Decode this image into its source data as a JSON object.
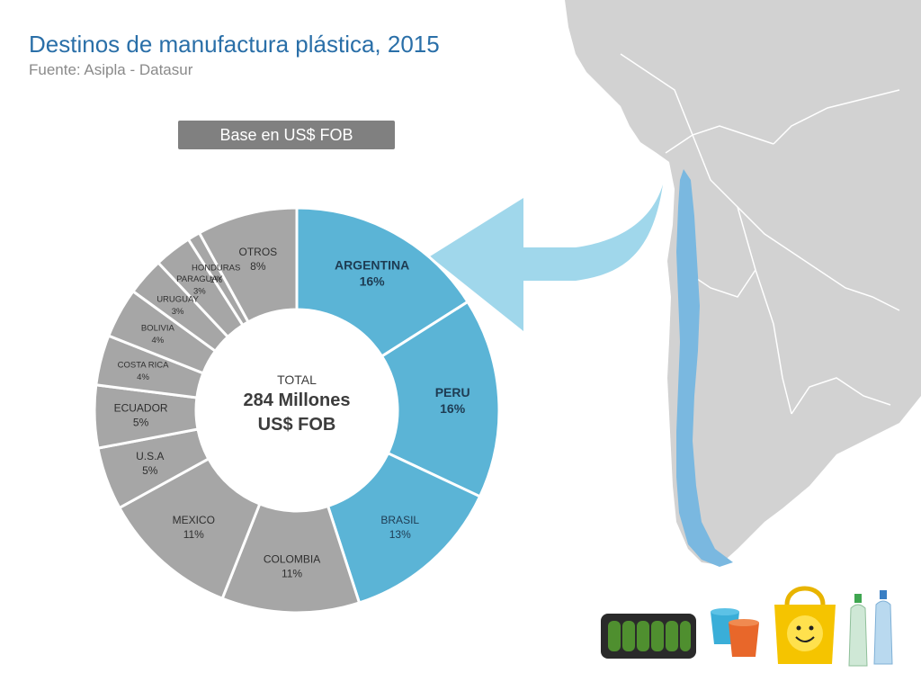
{
  "slide": {
    "title": "Destinos de manufactura plástica, 2015",
    "subtitle": "Fuente: Asipla - Datasur",
    "base_label": "Base en US$ FOB"
  },
  "colors": {
    "highlight": "#5bb4d6",
    "other": "#a6a6a6",
    "title": "#2a6fa8",
    "arrow": "#8fd0e8",
    "map_land": "#d2d2d2",
    "chile": "#7ab8e0"
  },
  "chart_data": {
    "type": "donut",
    "center": {
      "line1": "TOTAL",
      "line2": "284 Millones",
      "line3": "US$ FOB"
    },
    "slices": [
      {
        "name": "ARGENTINA",
        "value": 16,
        "label": "16%",
        "highlight": true
      },
      {
        "name": "PERU",
        "value": 16,
        "label": "16%",
        "highlight": true
      },
      {
        "name": "BRASIL",
        "value": 13,
        "label": "13%",
        "highlight": true
      },
      {
        "name": "COLOMBIA",
        "value": 11,
        "label": "11%",
        "highlight": false
      },
      {
        "name": "MEXICO",
        "value": 11,
        "label": "11%",
        "highlight": false
      },
      {
        "name": "U.S.A",
        "value": 5,
        "label": "5%",
        "highlight": false
      },
      {
        "name": "ECUADOR",
        "value": 5,
        "label": "5%",
        "highlight": false
      },
      {
        "name": "COSTA RICA",
        "value": 4,
        "label": "4%",
        "highlight": false
      },
      {
        "name": "BOLIVIA",
        "value": 4,
        "label": "4%",
        "highlight": false
      },
      {
        "name": "URUGUAY",
        "value": 3,
        "label": "3%",
        "highlight": false
      },
      {
        "name": "PARAGUAY",
        "value": 3,
        "label": "3%",
        "highlight": false
      },
      {
        "name": "HONDURAS",
        "value": 1,
        "label": "1%",
        "highlight": false
      },
      {
        "name": "OTROS",
        "value": 8,
        "label": "8%",
        "highlight": false
      }
    ]
  },
  "images": [
    {
      "name": "cucumbers-tray-image"
    },
    {
      "name": "flower-pots-image"
    },
    {
      "name": "smiley-bag-image"
    },
    {
      "name": "plastic-bottles-image"
    }
  ]
}
